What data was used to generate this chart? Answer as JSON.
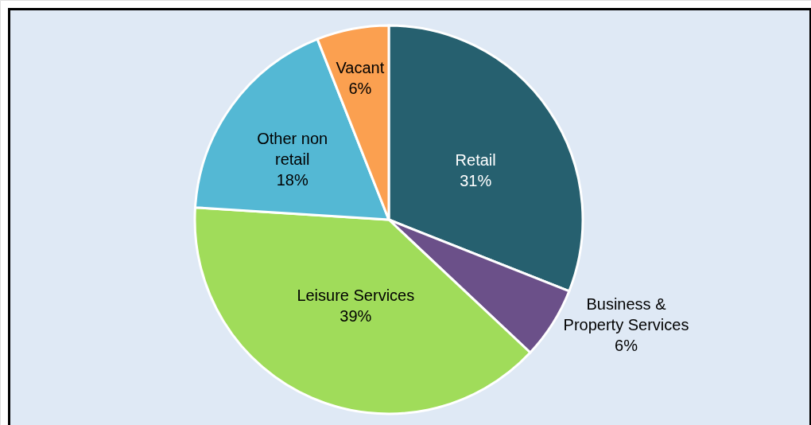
{
  "chart_data": {
    "type": "pie",
    "categories": [
      "Retail",
      "Business & Property Services",
      "Leisure Services",
      "Other non retail",
      "Vacant"
    ],
    "values": [
      31,
      6,
      39,
      18,
      6
    ],
    "value_labels": [
      "31%",
      "6%",
      "39%",
      "18%",
      "6%"
    ],
    "colors": [
      "#26606f",
      "#6b5089",
      "#a0dc5a",
      "#54b8d4",
      "#fba050"
    ]
  }
}
